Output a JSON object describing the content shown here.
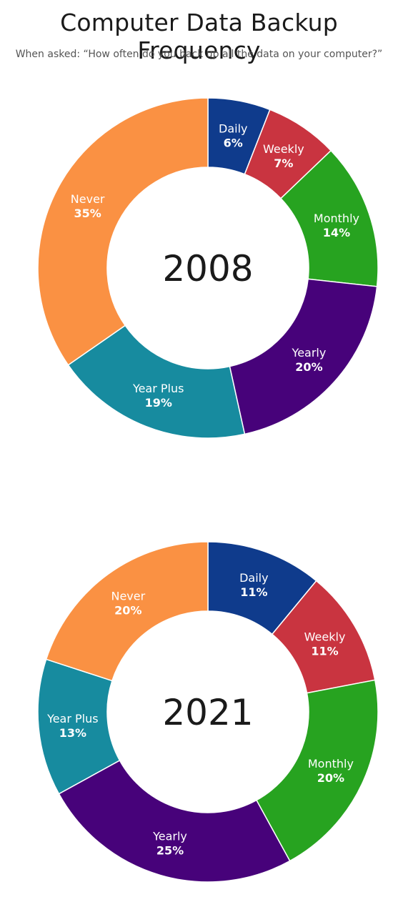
{
  "title": "Computer Data Backup Frequency",
  "subtitle": "When asked: “How often do you back up all the data on your computer?”",
  "chart_data": [
    {
      "type": "pie",
      "center_label": "2008",
      "categories": [
        "Daily",
        "Weekly",
        "Monthly",
        "Yearly",
        "Year Plus",
        "Never"
      ],
      "values": [
        6,
        7,
        14,
        20,
        19,
        35
      ],
      "value_labels": [
        "6%",
        "7%",
        "14%",
        "20%",
        "19%",
        "35%"
      ],
      "colors": [
        "#0f3b8c",
        "#c93440",
        "#27a320",
        "#47027a",
        "#178b9f",
        "#fa9143"
      ]
    },
    {
      "type": "pie",
      "center_label": "2021",
      "categories": [
        "Daily",
        "Weekly",
        "Monthly",
        "Yearly",
        "Year Plus",
        "Never"
      ],
      "values": [
        11,
        11,
        20,
        25,
        13,
        20
      ],
      "value_labels": [
        "11%",
        "11%",
        "20%",
        "25%",
        "13%",
        "20%"
      ],
      "colors": [
        "#0f3b8c",
        "#c93440",
        "#27a320",
        "#47027a",
        "#178b9f",
        "#fa9143"
      ]
    }
  ]
}
